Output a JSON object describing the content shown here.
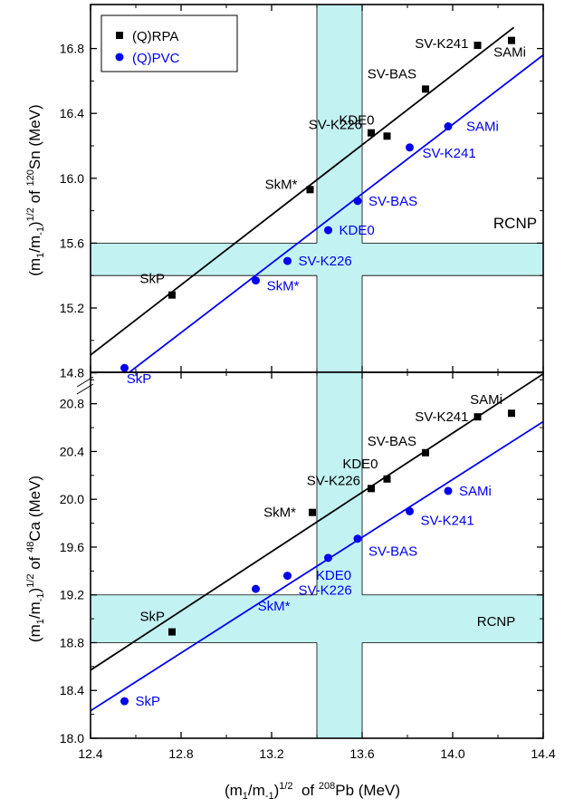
{
  "chart_data": [
    {
      "type": "scatter",
      "panel": "top",
      "ylabel_parts": {
        "a": "(m",
        "a_sub": "1",
        "b": "/m",
        "b_sub": "-1",
        "c": ")",
        "c_sup": "1/2",
        "d": " of ",
        "d_sup": "120",
        "e": "Sn (MeV)"
      },
      "xlim": [
        12.4,
        14.4
      ],
      "ylim": [
        14.6,
        16.8
      ],
      "y_ticks": [
        "14.8",
        "15.2",
        "15.6",
        "16.0",
        "16.4",
        "16.8"
      ],
      "y_tick_values": [
        14.8,
        15.2,
        15.6,
        16.0,
        16.4,
        16.8
      ],
      "grid": false,
      "legend": {
        "position": "top-left",
        "entries": [
          "(Q)RPA",
          "(Q)PVC"
        ]
      },
      "series": [
        {
          "name": "(Q)RPA",
          "color": "#000000",
          "marker": "square",
          "x": [
            12.76,
            13.37,
            13.64,
            13.71,
            13.88,
            14.11,
            14.26
          ],
          "y": [
            15.28,
            15.93,
            16.28,
            16.26,
            16.55,
            16.82,
            16.85
          ],
          "labels": [
            "SkP",
            "SkM*",
            "SV-K226",
            "KDE0",
            "SV-BAS",
            "SV-K241",
            "SAMi"
          ],
          "fit": [
            [
              12.4,
              14.91
            ],
            [
              14.27,
              16.93
            ]
          ]
        },
        {
          "name": "(Q)PVC",
          "color": "#0000ee",
          "marker": "circle",
          "x": [
            12.55,
            13.13,
            13.27,
            13.45,
            13.58,
            13.81,
            13.98
          ],
          "y": [
            14.83,
            15.37,
            15.49,
            15.68,
            15.86,
            16.19,
            16.32
          ],
          "labels": [
            "SkP",
            "SkM*",
            "SV-K226",
            "KDE0",
            "SV-BAS",
            "SV-K241",
            "SAMi"
          ],
          "fit": [
            [
              12.4,
              14.62
            ],
            [
              14.4,
              16.76
            ]
          ]
        }
      ],
      "bands": {
        "x": [
          13.4,
          13.6
        ],
        "y": [
          15.4,
          15.6
        ]
      },
      "band_label": "RCNP"
    },
    {
      "type": "scatter",
      "panel": "bottom",
      "xlabel_parts": {
        "a": "(m",
        "a_sub": "1",
        "b": "/m",
        "b_sub": "-1",
        "c": ")",
        "c_sup": "1/2",
        "d": "  of ",
        "d_sup": "208",
        "e": "Pb (MeV)"
      },
      "ylabel_parts": {
        "a": "(m",
        "a_sub": "1",
        "b": "/m",
        "b_sub": "-1",
        "c": ")",
        "c_sup": "1/2",
        "d": " of ",
        "d_sup": "48",
        "e": "Ca (MeV)"
      },
      "xlim": [
        12.4,
        14.4
      ],
      "ylim": [
        18.0,
        21.0
      ],
      "x_ticks": [
        "12.4",
        "12.8",
        "13.2",
        "13.6",
        "14.0",
        "14.4"
      ],
      "x_tick_values": [
        12.4,
        12.8,
        13.2,
        13.6,
        14.0,
        14.4
      ],
      "y_ticks": [
        "18.0",
        "18.4",
        "18.8",
        "19.2",
        "19.6",
        "20.0",
        "20.4",
        "20.8"
      ],
      "y_tick_values": [
        18.0,
        18.4,
        18.8,
        19.2,
        19.6,
        20.0,
        20.4,
        20.8
      ],
      "grid": false,
      "series": [
        {
          "name": "(Q)RPA",
          "color": "#000000",
          "marker": "square",
          "x": [
            12.76,
            13.38,
            13.64,
            13.71,
            13.88,
            14.11,
            14.26
          ],
          "y": [
            18.89,
            19.89,
            20.09,
            20.17,
            20.39,
            20.69,
            20.72
          ],
          "labels": [
            "SkP",
            "SkM*",
            "SV-K226",
            "KDE0",
            "SV-BAS",
            "SV-K241",
            "SAMi"
          ],
          "fit": [
            [
              12.4,
              18.57
            ],
            [
              14.4,
              21.05
            ]
          ]
        },
        {
          "name": "(Q)PVC",
          "color": "#0000ee",
          "marker": "circle",
          "x": [
            12.55,
            13.13,
            13.27,
            13.45,
            13.58,
            13.81,
            13.98
          ],
          "y": [
            18.31,
            19.25,
            19.36,
            19.51,
            19.67,
            19.9,
            20.07
          ],
          "labels": [
            "SkP",
            "SkM*",
            "SV-K226",
            "KDE0",
            "SV-BAS",
            "SV-K241",
            "SAMi"
          ],
          "fit": [
            [
              12.4,
              18.23
            ],
            [
              14.4,
              20.65
            ]
          ]
        }
      ],
      "bands": {
        "x": [
          13.4,
          13.6
        ],
        "y": [
          18.8,
          19.2
        ]
      },
      "band_label": "RCNP"
    }
  ],
  "colors": {
    "band": "#c2f2f2",
    "rpa": "#000000",
    "pvc": "#0000ee"
  }
}
